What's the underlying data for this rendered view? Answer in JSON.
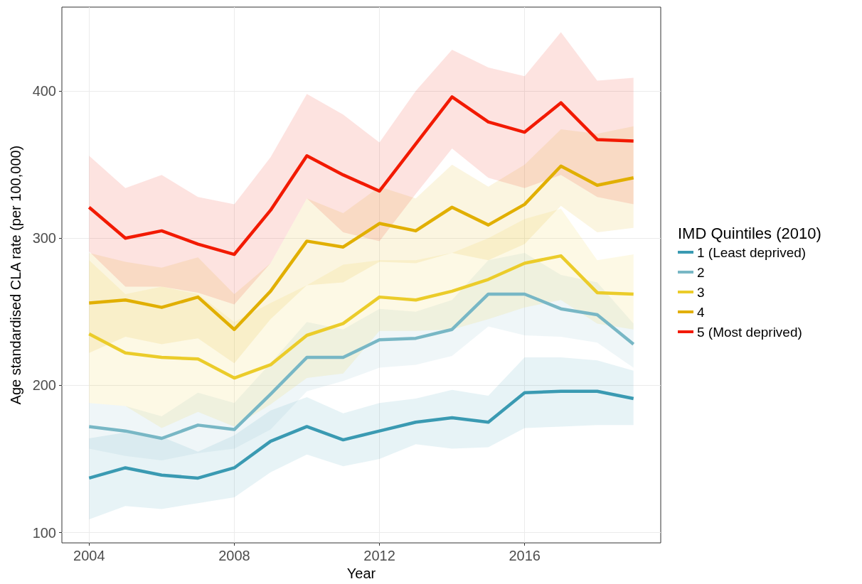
{
  "chart_data": {
    "type": "line",
    "xlabel": "Year",
    "ylabel": "Age standardised CLA rate (per 100,000)",
    "legend_title": "IMD Quintiles (2010)",
    "legend": "right",
    "grid": true,
    "marker": "none",
    "line_style": "solid",
    "x": [
      2004,
      2005,
      2006,
      2007,
      2008,
      2009,
      2010,
      2011,
      2012,
      2013,
      2014,
      2015,
      2016,
      2017,
      2018,
      2019
    ],
    "xlim": [
      2003.25,
      2019.75
    ],
    "xticks": [
      2004,
      2008,
      2012,
      2016
    ],
    "ylim": [
      93,
      457
    ],
    "yticks": [
      100,
      200,
      300,
      400
    ],
    "series": [
      {
        "name": "1 (Least deprived)",
        "color": "#3a9ab2",
        "values": [
          137,
          144,
          139,
          137,
          144,
          162,
          172,
          163,
          169,
          175,
          178,
          175,
          195,
          196,
          196,
          191
        ],
        "lower": [
          109,
          118,
          116,
          120,
          124,
          141,
          153,
          145,
          150,
          160,
          157,
          158,
          171,
          172,
          173,
          173
        ],
        "upper": [
          164,
          168,
          165,
          155,
          166,
          183,
          192,
          181,
          188,
          191,
          197,
          193,
          219,
          219,
          217,
          210
        ]
      },
      {
        "name": "2",
        "color": "#78b7c5",
        "values": [
          172,
          169,
          164,
          173,
          170,
          194,
          219,
          219,
          231,
          232,
          238,
          262,
          262,
          252,
          248,
          228
        ],
        "lower": [
          157,
          152,
          149,
          154,
          157,
          170,
          196,
          203,
          212,
          214,
          220,
          240,
          234,
          233,
          229,
          212
        ],
        "upper": [
          188,
          186,
          179,
          195,
          188,
          215,
          243,
          238,
          252,
          250,
          258,
          285,
          290,
          275,
          270,
          242
        ]
      },
      {
        "name": "3",
        "color": "#ebcc2a",
        "values": [
          235,
          222,
          219,
          218,
          205,
          214,
          234,
          242,
          260,
          258,
          264,
          272,
          283,
          288,
          263,
          262
        ],
        "lower": [
          188,
          186,
          171,
          182,
          172,
          187,
          205,
          208,
          237,
          237,
          238,
          245,
          253,
          258,
          242,
          238
        ],
        "upper": [
          285,
          262,
          267,
          262,
          243,
          256,
          268,
          282,
          285,
          285,
          290,
          300,
          313,
          320,
          285,
          289
        ]
      },
      {
        "name": "4",
        "color": "#e1af00",
        "values": [
          256,
          258,
          253,
          260,
          238,
          264,
          298,
          294,
          310,
          305,
          321,
          309,
          323,
          349,
          336,
          341
        ],
        "lower": [
          222,
          233,
          228,
          232,
          215,
          245,
          268,
          270,
          284,
          283,
          290,
          285,
          296,
          322,
          304,
          307
        ],
        "upper": [
          290,
          284,
          280,
          287,
          262,
          283,
          327,
          317,
          335,
          327,
          350,
          335,
          350,
          374,
          371,
          376
        ]
      },
      {
        "name": "5 (Most deprived)",
        "color": "#f21a00",
        "values": [
          321,
          300,
          305,
          296,
          289,
          319,
          356,
          343,
          332,
          364,
          396,
          379,
          372,
          392,
          367,
          366
        ],
        "lower": [
          291,
          267,
          267,
          263,
          255,
          283,
          327,
          304,
          298,
          330,
          361,
          341,
          334,
          343,
          328,
          323
        ],
        "upper": [
          356,
          334,
          343,
          328,
          323,
          355,
          398,
          384,
          365,
          400,
          428,
          416,
          410,
          440,
          407,
          409
        ]
      }
    ]
  }
}
